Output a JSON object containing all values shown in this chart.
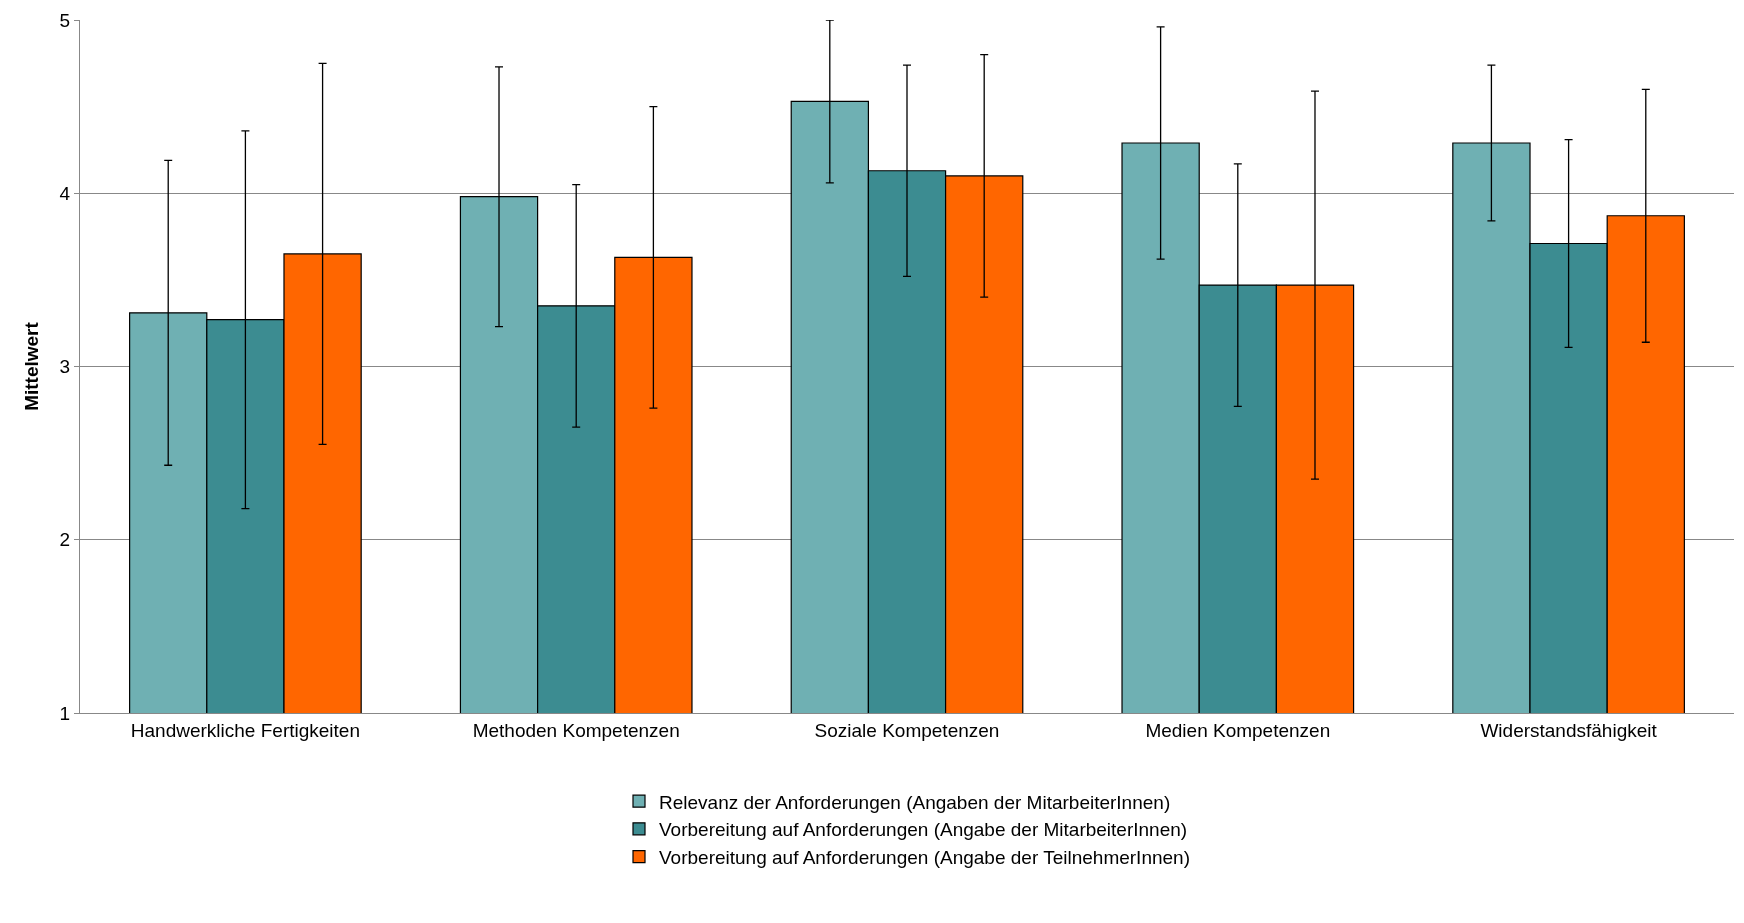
{
  "chart_data": {
    "type": "bar",
    "ylabel": "Mittelwert",
    "categories": [
      "Handwerkliche Fertigkeiten",
      "Methoden Kompetenzen",
      "Soziale Kompetenzen",
      "Medien Kompetenzen",
      "Widerstandsfähigkeit"
    ],
    "series": [
      {
        "name": "Relevanz der Anforderungen (Angaben der MitarbeiterInnen)",
        "color": "#6fb0b3",
        "values": [
          3.31,
          3.98,
          4.53,
          4.29,
          4.29
        ],
        "errors": [
          0.88,
          0.75,
          0.47,
          0.67,
          0.45
        ]
      },
      {
        "name": "Vorbereitung auf Anforderungen (Angabe der MitarbeiterInnen)",
        "color": "#3c8c91",
        "values": [
          3.27,
          3.35,
          4.13,
          3.47,
          3.71
        ],
        "errors": [
          1.09,
          0.7,
          0.61,
          0.7,
          0.6
        ]
      },
      {
        "name": "Vorbereitung auf Anforderungen (Angabe der TeilnehmerInnen)",
        "color": "#ff6600",
        "values": [
          3.65,
          3.63,
          4.1,
          3.47,
          3.87
        ],
        "errors": [
          1.1,
          0.87,
          0.7,
          1.12,
          0.73
        ]
      }
    ],
    "ylim": [
      1,
      5
    ],
    "yticks": [
      1,
      2,
      3,
      4,
      5
    ],
    "grid": "y",
    "legend": "bottom"
  }
}
